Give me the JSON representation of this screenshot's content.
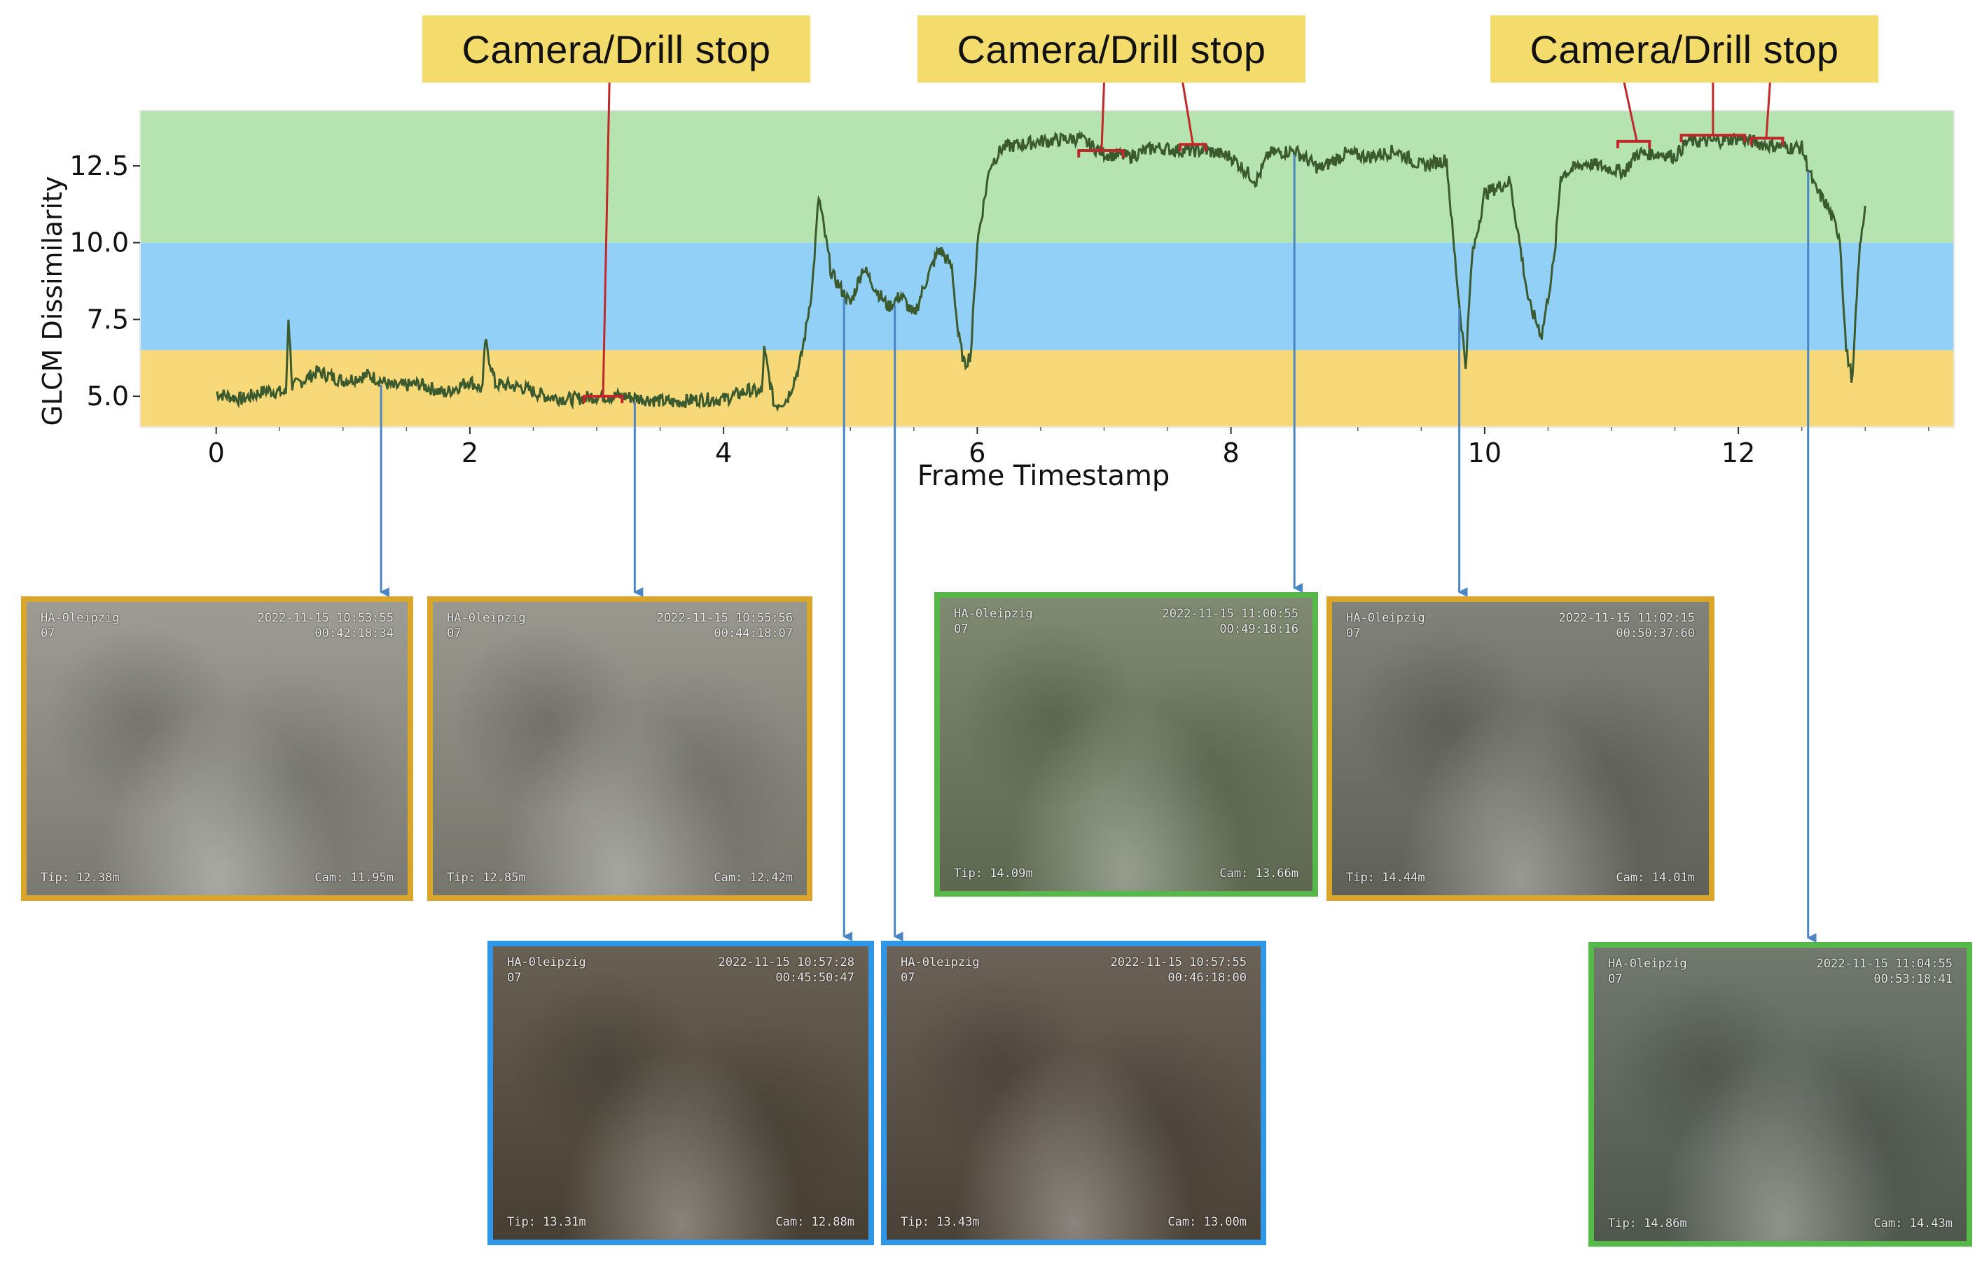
{
  "chart_data": {
    "type": "line",
    "title": "",
    "xlabel": "Frame Timestamp",
    "ylabel": "GLCM Dissimilarity",
    "xlim": [
      -0.6,
      13.7
    ],
    "ylim": [
      4.0,
      14.3
    ],
    "xticks": [
      0,
      2,
      4,
      6,
      8,
      10,
      12
    ],
    "yticks": [
      5.0,
      7.5,
      10.0,
      12.5
    ],
    "grid": false,
    "legend": "none",
    "bands": [
      {
        "from": 4.0,
        "to": 6.5,
        "color": "#f8d97a"
      },
      {
        "from": 6.5,
        "to": 10.0,
        "color": "#92d0f7"
      },
      {
        "from": 10.0,
        "to": 14.3,
        "color": "#b5e4b0"
      }
    ],
    "series": [
      {
        "color": "#3b5b2e",
        "x": [
          0,
          0.2,
          0.4,
          0.55,
          0.57,
          0.6,
          0.8,
          1.0,
          1.2,
          1.4,
          1.6,
          1.8,
          2.0,
          2.1,
          2.12,
          2.2,
          2.4,
          2.6,
          2.8,
          3.0,
          3.2,
          3.4,
          3.6,
          3.8,
          4.0,
          4.2,
          4.3,
          4.32,
          4.4,
          4.5,
          4.6,
          4.65,
          4.7,
          4.75,
          4.85,
          5.0,
          5.1,
          5.2,
          5.3,
          5.4,
          5.5,
          5.6,
          5.7,
          5.8,
          5.85,
          5.9,
          5.95,
          6.0,
          6.1,
          6.2,
          6.5,
          6.8,
          7.0,
          7.2,
          7.4,
          7.6,
          7.8,
          8.0,
          8.2,
          8.3,
          8.5,
          8.7,
          8.9,
          9.1,
          9.3,
          9.5,
          9.7,
          9.75,
          9.8,
          9.85,
          9.9,
          10.0,
          10.2,
          10.35,
          10.45,
          10.55,
          10.6,
          10.8,
          11.0,
          11.1,
          11.2,
          11.4,
          11.5,
          11.6,
          11.8,
          12.0,
          12.2,
          12.4,
          12.5,
          12.6,
          12.7,
          12.75,
          12.8,
          12.85,
          12.9,
          12.95,
          13.0
        ],
        "y": [
          5.1,
          4.9,
          5.2,
          5.1,
          7.6,
          5.3,
          5.8,
          5.5,
          5.7,
          5.3,
          5.4,
          5.1,
          5.5,
          5.2,
          6.8,
          5.4,
          5.3,
          5.0,
          4.9,
          5.0,
          5.0,
          4.9,
          4.8,
          4.9,
          4.9,
          5.2,
          5.1,
          6.5,
          4.7,
          4.9,
          6.0,
          7.2,
          8.6,
          11.5,
          9.0,
          8.0,
          9.2,
          8.5,
          7.9,
          8.3,
          7.6,
          8.8,
          9.8,
          9.2,
          7.0,
          6.0,
          6.4,
          10.0,
          12.5,
          13.1,
          13.3,
          13.4,
          12.9,
          12.8,
          13.1,
          13.0,
          13.0,
          12.8,
          12.0,
          12.9,
          13.0,
          12.4,
          12.9,
          12.8,
          13.0,
          12.5,
          12.7,
          10.2,
          8.0,
          6.0,
          9.5,
          11.6,
          12.0,
          8.0,
          7.0,
          9.5,
          12.2,
          12.6,
          12.4,
          12.3,
          12.9,
          12.9,
          12.8,
          13.3,
          13.3,
          13.4,
          13.2,
          13.1,
          13.1,
          11.8,
          11.2,
          10.7,
          10.2,
          6.5,
          5.5,
          9.5,
          11.2
        ]
      }
    ],
    "stops": [
      {
        "x1": 2.9,
        "x2": 3.2,
        "y": 5.0
      },
      {
        "x1": 6.8,
        "x2": 7.15,
        "y": 13.0
      },
      {
        "x1": 7.6,
        "x2": 7.8,
        "y": 13.2
      },
      {
        "x1": 11.05,
        "x2": 11.3,
        "y": 13.3
      },
      {
        "x1": 11.55,
        "x2": 12.05,
        "y": 13.5
      },
      {
        "x1": 12.1,
        "x2": 12.35,
        "y": 13.4
      }
    ],
    "annotations": [
      {
        "text": "Camera/Drill stop"
      },
      {
        "text": "Camera/Drill stop"
      },
      {
        "text": "Camera/Drill stop"
      }
    ]
  },
  "frames": [
    {
      "tl": "HA-0leipzig\n07",
      "tr": "2022-11-15 10:53:55\n00:42:18:34",
      "bl": "Tip: 12.38m",
      "br": "Cam: 11.95m",
      "color": "#d9a62b",
      "time": 1.3,
      "tint": "#8f8f86"
    },
    {
      "tl": "HA-0leipzig\n07",
      "tr": "2022-11-15 10:55:56\n00:44:18:07",
      "bl": "Tip: 12.85m",
      "br": "Cam: 12.42m",
      "color": "#d9a62b",
      "time": 3.3,
      "tint": "#8a8a80"
    },
    {
      "tl": "HA-0leipzig\n07",
      "tr": "2022-11-15 11:00:55\n00:49:18:16",
      "bl": "Tip: 14.09m",
      "br": "Cam: 13.66m",
      "color": "#57b84a",
      "time": 8.5,
      "tint": "#6e7a5e"
    },
    {
      "tl": "HA-0leipzig\n07",
      "tr": "2022-11-15 11:02:15\n00:50:37:60",
      "bl": "Tip: 14.44m",
      "br": "Cam: 14.01m",
      "color": "#d9a62b",
      "time": 9.8,
      "tint": "#707268"
    },
    {
      "tl": "HA-0leipzig\n07",
      "tr": "2022-11-15 10:57:28\n00:45:50:47",
      "bl": "Tip: 13.31m",
      "br": "Cam: 12.88m",
      "color": "#2f97e6",
      "time": 4.95,
      "tint": "#544a3c"
    },
    {
      "tl": "HA-0leipzig\n07",
      "tr": "2022-11-15 10:57:55\n00:46:18:00",
      "bl": "Tip: 13.43m",
      "br": "Cam: 13.00m",
      "color": "#2f97e6",
      "time": 5.35,
      "tint": "#574c40"
    },
    {
      "tl": "HA-0leipzig\n07",
      "tr": "2022-11-15 11:04:55\n00:53:18:41",
      "bl": "Tip: 14.86m",
      "br": "Cam: 14.43m",
      "color": "#57b84a",
      "time": 12.55,
      "tint": "#5e6659"
    }
  ]
}
